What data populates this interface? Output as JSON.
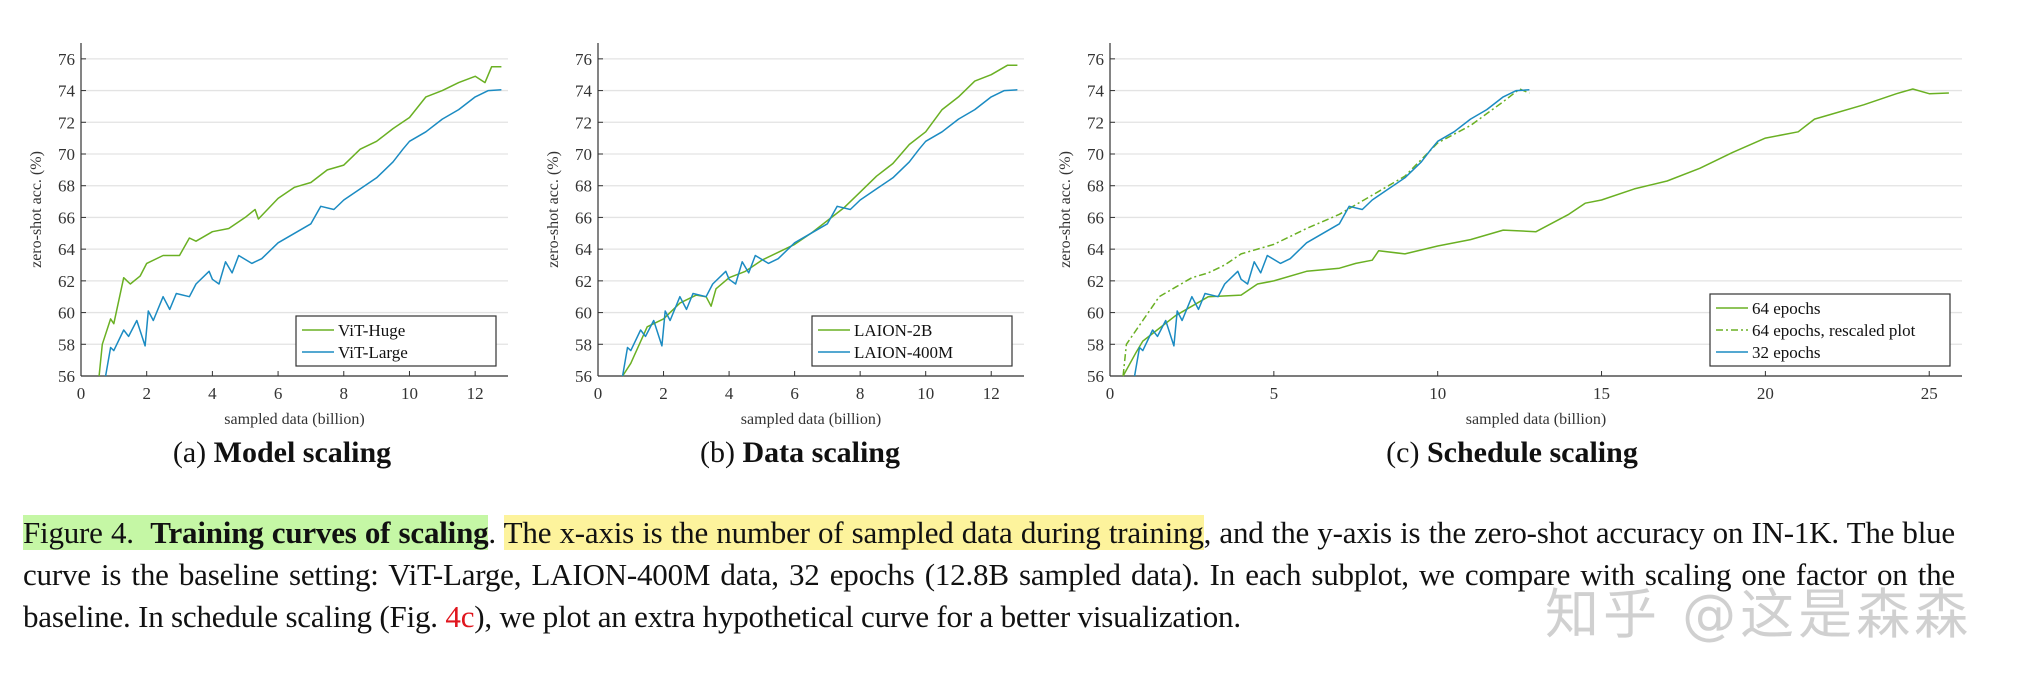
{
  "chart_data": [
    {
      "type": "line",
      "xlabel": "sampled data (billion)",
      "ylabel": "zero-shot acc. (%)",
      "xlim": [
        0,
        13
      ],
      "ylim": [
        56,
        77
      ],
      "xticks": [
        0,
        2,
        4,
        6,
        8,
        10,
        12
      ],
      "yticks": [
        56,
        58,
        60,
        62,
        64,
        66,
        68,
        70,
        72,
        74,
        76
      ],
      "grid": "horizontal",
      "legend": "bottom-right",
      "subcaption_prefix": "(a)",
      "subcaption": "Model scaling",
      "series": [
        {
          "name": "ViT-Huge",
          "color": "#6ab023",
          "dash": "solid",
          "x": [
            0.55,
            0.65,
            0.9,
            1.0,
            1.3,
            1.5,
            1.8,
            2.0,
            2.5,
            3.0,
            3.3,
            3.5,
            4.0,
            4.5,
            5.0,
            5.3,
            5.4,
            6.0,
            6.5,
            7.0,
            7.5,
            8.0,
            8.5,
            9.0,
            9.5,
            10.0,
            10.5,
            11.0,
            11.5,
            12.0,
            12.3,
            12.5,
            12.8
          ],
          "y": [
            56,
            58,
            59.6,
            59.3,
            62.2,
            61.8,
            62.3,
            63.1,
            63.6,
            63.6,
            64.7,
            64.5,
            65.1,
            65.3,
            66.0,
            66.5,
            65.9,
            67.2,
            67.9,
            68.2,
            69.0,
            69.3,
            70.3,
            70.8,
            71.6,
            72.3,
            73.6,
            74.0,
            74.5,
            74.9,
            74.5,
            75.5,
            75.5
          ]
        },
        {
          "name": "ViT-Large",
          "color": "#1b8bc2",
          "dash": "solid",
          "x": [
            0.75,
            0.9,
            1.0,
            1.3,
            1.45,
            1.7,
            1.95,
            2.05,
            2.2,
            2.5,
            2.7,
            2.9,
            3.3,
            3.5,
            3.9,
            4.0,
            4.2,
            4.4,
            4.6,
            4.8,
            5.2,
            5.5,
            6.0,
            6.5,
            7.0,
            7.3,
            7.7,
            8.0,
            8.5,
            9.0,
            9.5,
            9.8,
            10.0,
            10.5,
            11.0,
            11.5,
            12.0,
            12.4,
            12.8
          ],
          "y": [
            56,
            57.8,
            57.6,
            58.9,
            58.5,
            59.5,
            57.9,
            60.1,
            59.5,
            61.0,
            60.2,
            61.2,
            61.0,
            61.8,
            62.6,
            62.1,
            61.8,
            63.2,
            62.5,
            63.6,
            63.1,
            63.4,
            64.4,
            65.0,
            65.6,
            66.7,
            66.5,
            67.1,
            67.8,
            68.5,
            69.5,
            70.3,
            70.8,
            71.4,
            72.2,
            72.8,
            73.6,
            74.0,
            74.05
          ]
        }
      ]
    },
    {
      "type": "line",
      "xlabel": "sampled data (billion)",
      "ylabel": "zero-shot acc. (%)",
      "xlim": [
        0,
        13
      ],
      "ylim": [
        56,
        77
      ],
      "xticks": [
        0,
        2,
        4,
        6,
        8,
        10,
        12
      ],
      "yticks": [
        56,
        58,
        60,
        62,
        64,
        66,
        68,
        70,
        72,
        74,
        76
      ],
      "grid": "horizontal",
      "legend": "bottom-right",
      "subcaption_prefix": "(b)",
      "subcaption": "Data scaling",
      "series": [
        {
          "name": "LAION-2B",
          "color": "#6ab023",
          "dash": "solid",
          "x": [
            0.75,
            1.0,
            1.5,
            2.0,
            2.5,
            3.0,
            3.3,
            3.45,
            3.6,
            4.0,
            4.5,
            5.0,
            5.5,
            6.0,
            6.5,
            7.0,
            7.5,
            8.0,
            8.5,
            9.0,
            9.5,
            10.0,
            10.5,
            11.0,
            11.5,
            12.0,
            12.5,
            12.8
          ],
          "y": [
            56,
            56.8,
            59.1,
            59.6,
            60.6,
            61.1,
            61.0,
            60.4,
            61.5,
            62.2,
            62.6,
            63.3,
            63.8,
            64.3,
            65.0,
            65.8,
            66.6,
            67.6,
            68.6,
            69.4,
            70.6,
            71.4,
            72.8,
            73.6,
            74.6,
            75.0,
            75.6,
            75.6
          ]
        },
        {
          "name": "LAION-400M",
          "color": "#1b8bc2",
          "dash": "solid",
          "x": [
            0.75,
            0.9,
            1.0,
            1.3,
            1.45,
            1.7,
            1.95,
            2.05,
            2.2,
            2.5,
            2.7,
            2.9,
            3.3,
            3.5,
            3.9,
            4.0,
            4.2,
            4.4,
            4.6,
            4.8,
            5.2,
            5.5,
            6.0,
            6.5,
            7.0,
            7.3,
            7.7,
            8.0,
            8.5,
            9.0,
            9.5,
            9.8,
            10.0,
            10.5,
            11.0,
            11.5,
            12.0,
            12.4,
            12.8
          ],
          "y": [
            56,
            57.8,
            57.6,
            58.9,
            58.5,
            59.5,
            57.9,
            60.1,
            59.5,
            61.0,
            60.2,
            61.2,
            61.0,
            61.8,
            62.6,
            62.1,
            61.8,
            63.2,
            62.5,
            63.6,
            63.1,
            63.4,
            64.4,
            65.0,
            65.6,
            66.7,
            66.5,
            67.1,
            67.8,
            68.5,
            69.5,
            70.3,
            70.8,
            71.4,
            72.2,
            72.8,
            73.6,
            74.0,
            74.05
          ]
        }
      ]
    },
    {
      "type": "line",
      "xlabel": "sampled data (billion)",
      "ylabel": "zero-shot acc. (%)",
      "xlim": [
        0,
        26
      ],
      "ylim": [
        56,
        77
      ],
      "xticks": [
        0,
        5,
        10,
        15,
        20,
        25
      ],
      "yticks": [
        56,
        58,
        60,
        62,
        64,
        66,
        68,
        70,
        72,
        74,
        76
      ],
      "grid": "horizontal",
      "legend": "bottom-right",
      "subcaption_prefix": "(c)",
      "subcaption": "Schedule scaling",
      "series": [
        {
          "name": "64 epochs",
          "color": "#6ab023",
          "dash": "solid",
          "x": [
            0.4,
            0.8,
            1.0,
            1.5,
            2.0,
            2.5,
            3.0,
            4.0,
            4.5,
            5.0,
            6.0,
            7.0,
            7.5,
            8.0,
            8.2,
            9.0,
            10.0,
            11.0,
            12.0,
            13.0,
            14.0,
            14.5,
            15.0,
            16.0,
            17.0,
            18.0,
            19.0,
            20.0,
            21.0,
            21.5,
            22.0,
            23.0,
            24.0,
            24.5,
            25.0,
            25.6
          ],
          "y": [
            56,
            57.5,
            58.2,
            59.0,
            59.8,
            60.4,
            61.0,
            61.1,
            61.8,
            62.0,
            62.6,
            62.8,
            63.1,
            63.3,
            63.9,
            63.7,
            64.2,
            64.6,
            65.2,
            65.1,
            66.2,
            66.9,
            67.1,
            67.8,
            68.3,
            69.1,
            70.1,
            71.0,
            71.4,
            72.2,
            72.5,
            73.1,
            73.8,
            74.1,
            73.8,
            73.85
          ]
        },
        {
          "name": "64 epochs, rescaled plot",
          "color": "#6ab023",
          "dash": "dashdot",
          "x": [
            0.4,
            0.5,
            1.0,
            1.5,
            2.0,
            2.5,
            3.0,
            3.5,
            4.0,
            5.0,
            6.0,
            7.0,
            8.0,
            9.0,
            10.0,
            11.0,
            12.0,
            12.5,
            12.8
          ],
          "y": [
            56,
            58,
            59.5,
            61.0,
            61.6,
            62.2,
            62.5,
            63.0,
            63.7,
            64.3,
            65.3,
            66.2,
            67.4,
            68.6,
            70.7,
            71.8,
            73.3,
            74.1,
            73.85
          ]
        },
        {
          "name": "32 epochs",
          "color": "#1b8bc2",
          "dash": "solid",
          "x": [
            0.75,
            0.9,
            1.0,
            1.3,
            1.45,
            1.7,
            1.95,
            2.05,
            2.2,
            2.5,
            2.7,
            2.9,
            3.3,
            3.5,
            3.9,
            4.0,
            4.2,
            4.4,
            4.6,
            4.8,
            5.2,
            5.5,
            6.0,
            6.5,
            7.0,
            7.3,
            7.7,
            8.0,
            8.5,
            9.0,
            9.5,
            9.8,
            10.0,
            10.5,
            11.0,
            11.5,
            12.0,
            12.4,
            12.8
          ],
          "y": [
            56,
            57.8,
            57.6,
            58.9,
            58.5,
            59.5,
            57.9,
            60.1,
            59.5,
            61.0,
            60.2,
            61.2,
            61.0,
            61.8,
            62.6,
            62.1,
            61.8,
            63.2,
            62.5,
            63.6,
            63.1,
            63.4,
            64.4,
            65.0,
            65.6,
            66.7,
            66.5,
            67.1,
            67.8,
            68.5,
            69.5,
            70.3,
            70.8,
            71.4,
            72.2,
            72.8,
            73.6,
            74.0,
            74.05
          ]
        }
      ]
    }
  ],
  "caption": {
    "figure_label": "Figure 4.",
    "title": "Training curves of scaling",
    "title_end": ".",
    "highlight": "The x-axis is the number of sampled data during training",
    "part1": ", and the y-axis is the zero-shot accuracy on IN-1K. The blue curve is the baseline setting: ViT-Large, LAION-400M data, 32 epochs (12.8B sampled data). In each subplot, we compare with scaling one factor on the baseline. In schedule scaling (Fig. ",
    "ref": "4c",
    "part2": "), we plot an extra hypothetical curve for a better visualization."
  },
  "colors": {
    "green_highlight": "#c5f7a5",
    "yellow_highlight": "#fdf39c",
    "ref_red": "#e0161e",
    "green_curve": "#6ab023",
    "blue_curve": "#1b8bc2"
  },
  "watermark": "知乎 @这是森森"
}
